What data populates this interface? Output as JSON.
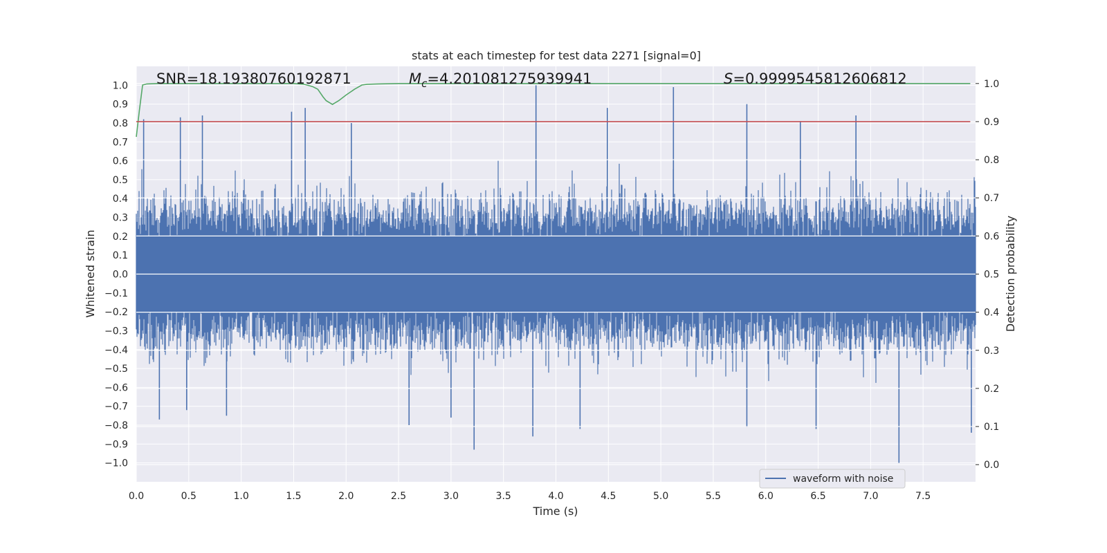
{
  "chart_data": {
    "type": "line",
    "title": "stats at each timestep for test data 2271 [signal=0]",
    "xlabel": "Time (s)",
    "ylabel": "Whitened strain",
    "y2label": "Detection probability",
    "xlim": [
      0.0,
      8.0
    ],
    "ylim": [
      -1.1,
      1.1
    ],
    "y2lim": [
      -0.045,
      1.045
    ],
    "xticks": [
      "0.0",
      "0.5",
      "1.0",
      "1.5",
      "2.0",
      "2.5",
      "3.0",
      "3.5",
      "4.0",
      "4.5",
      "5.0",
      "5.5",
      "6.0",
      "6.5",
      "7.0",
      "7.5"
    ],
    "yticks": [
      "1.0",
      "0.9",
      "0.8",
      "0.7",
      "0.6",
      "0.5",
      "0.4",
      "0.3",
      "0.2",
      "0.1",
      "0.0",
      "−0.1",
      "−0.2",
      "−0.3",
      "−0.4",
      "−0.5",
      "−0.6",
      "−0.7",
      "−0.8",
      "−0.9",
      "−1.0"
    ],
    "y2ticks": [
      "1.0",
      "0.9",
      "0.8",
      "0.7",
      "0.6",
      "0.5",
      "0.4",
      "0.3",
      "0.2",
      "0.1",
      "0.0"
    ],
    "grid": true,
    "legend_position": "lower-right",
    "annotations": {
      "snr": "SNR=18.19380760192871",
      "mc_symbol": "M",
      "mc_sub": "c",
      "mc_value": "=4.201081275939941",
      "s_symbol": "S",
      "s_value": "=0.9999545812606812"
    },
    "series": [
      {
        "name": "waveform with noise",
        "axis": "left",
        "color": "#4c72b0",
        "kind": "noise",
        "x_range": [
          0.0,
          7.998
        ],
        "core_band": [
          -0.2,
          0.2
        ],
        "typical_peak_max": 0.45,
        "typical_trough_min": -0.45,
        "spikes": [
          {
            "x": 0.07,
            "y": 0.82
          },
          {
            "x": 0.42,
            "y": 0.83
          },
          {
            "x": 0.63,
            "y": 0.84
          },
          {
            "x": 1.48,
            "y": 0.86
          },
          {
            "x": 1.61,
            "y": 0.88
          },
          {
            "x": 2.05,
            "y": 0.8
          },
          {
            "x": 3.81,
            "y": 1.0
          },
          {
            "x": 4.49,
            "y": 0.88
          },
          {
            "x": 5.12,
            "y": 0.99
          },
          {
            "x": 5.82,
            "y": 0.9
          },
          {
            "x": 6.33,
            "y": 0.81
          },
          {
            "x": 6.86,
            "y": 0.84
          },
          {
            "x": 0.22,
            "y": -0.77
          },
          {
            "x": 0.48,
            "y": -0.72
          },
          {
            "x": 0.86,
            "y": -0.75
          },
          {
            "x": 2.6,
            "y": -0.8
          },
          {
            "x": 3.0,
            "y": -0.76
          },
          {
            "x": 3.22,
            "y": -0.93
          },
          {
            "x": 3.78,
            "y": -0.86
          },
          {
            "x": 4.23,
            "y": -0.82
          },
          {
            "x": 5.82,
            "y": -0.81
          },
          {
            "x": 6.48,
            "y": -0.82
          },
          {
            "x": 7.27,
            "y": -1.0
          },
          {
            "x": 7.96,
            "y": -0.84
          }
        ]
      },
      {
        "name": "",
        "axis": "right",
        "color": "#55a868",
        "x": [
          0.0,
          0.03,
          0.06,
          0.1,
          0.2,
          0.5,
          1.0,
          1.5,
          1.6,
          1.68,
          1.73,
          1.78,
          1.81,
          1.87,
          1.93,
          2.0,
          2.08,
          2.15,
          2.2,
          2.3,
          2.5,
          3.0,
          4.0,
          5.0,
          6.0,
          7.0,
          7.95
        ],
        "y": [
          0.86,
          0.93,
          0.996,
          0.999,
          1.0,
          1.0,
          1.0,
          1.0,
          0.998,
          0.992,
          0.985,
          0.965,
          0.955,
          0.945,
          0.955,
          0.97,
          0.985,
          0.996,
          0.998,
          0.999,
          1.0,
          1.0,
          1.0,
          1.0,
          1.0,
          1.0,
          1.0
        ]
      },
      {
        "name": "",
        "axis": "right",
        "color": "#c44e52",
        "x": [
          0.0,
          7.95
        ],
        "y": [
          0.9,
          0.9
        ]
      }
    ]
  }
}
